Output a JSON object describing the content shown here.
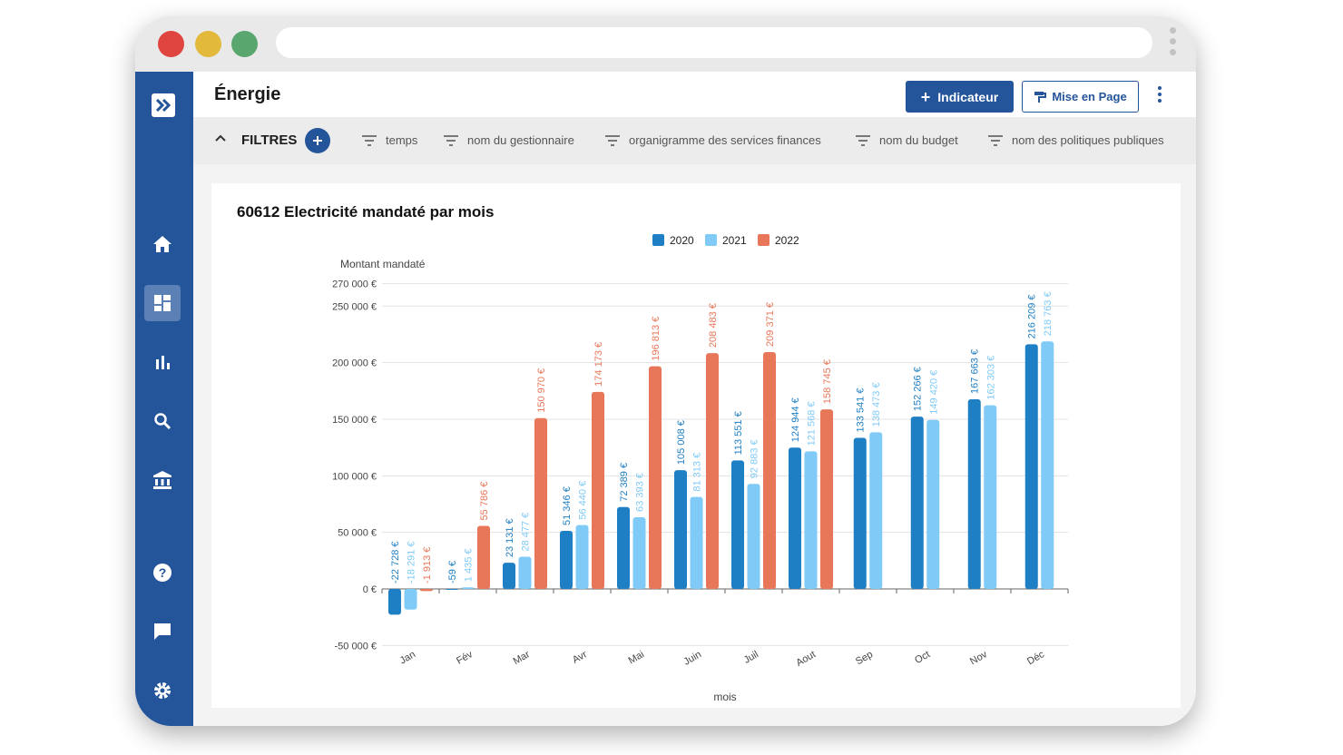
{
  "browser": {
    "dots": [
      {
        "name": "close-dot",
        "color": "#e0443e"
      },
      {
        "name": "minimize-dot",
        "color": "#e2b93b"
      },
      {
        "name": "maximize-dot",
        "color": "#5aa66f"
      }
    ]
  },
  "sidebar": {
    "items": [
      {
        "name": "logo-icon",
        "icon": "double-chevron-right"
      },
      {
        "name": "home-icon",
        "icon": "home"
      },
      {
        "name": "dashboard-icon",
        "icon": "dashboard",
        "active": true
      },
      {
        "name": "bar-chart-icon",
        "icon": "bar-chart"
      },
      {
        "name": "search-icon",
        "icon": "search"
      },
      {
        "name": "institution-icon",
        "icon": "bank"
      },
      {
        "name": "help-icon",
        "icon": "help"
      },
      {
        "name": "chat-icon",
        "icon": "chat"
      },
      {
        "name": "settings-icon",
        "icon": "gear"
      }
    ]
  },
  "header": {
    "title": "Énergie",
    "indicator_button": "Indicateur",
    "layout_button": "Mise en Page"
  },
  "filters": {
    "label": "FILTRES",
    "items": [
      "temps",
      "nom du gestionnaire",
      "organigramme des services finances",
      "nom du budget",
      "nom des politiques publiques"
    ]
  },
  "card": {
    "title": "60612 Electricité mandaté par mois"
  },
  "colors": {
    "brand": "#24549a",
    "series_2020": "#1f7fc4",
    "series_2021": "#7fcaf7",
    "series_2022": "#e8775a"
  },
  "chart_data": {
    "type": "bar",
    "xlabel": "mois",
    "ylabel": "Montant mandaté",
    "ylim": [
      -50000,
      270000
    ],
    "yticks": [
      {
        "value": 270000,
        "label": "270 000 €"
      },
      {
        "value": 250000,
        "label": "250 000 €"
      },
      {
        "value": 200000,
        "label": "200 000 €"
      },
      {
        "value": 150000,
        "label": "150 000 €"
      },
      {
        "value": 100000,
        "label": "100 000 €"
      },
      {
        "value": 50000,
        "label": "50 000 €"
      },
      {
        "value": 0,
        "label": "0 €"
      },
      {
        "value": -50000,
        "label": "-50 000 €"
      }
    ],
    "legend_position": "top-center",
    "grid": true,
    "categories": [
      "Jan",
      "Fév",
      "Mar",
      "Avr",
      "Mai",
      "Juin",
      "Juil",
      "Aout",
      "Sep",
      "Oct",
      "Nov",
      "Déc"
    ],
    "series": [
      {
        "name": "2020",
        "values": [
          -22728,
          -59,
          23131,
          51346,
          72389,
          105008,
          113551,
          124944,
          133541,
          152266,
          167663,
          216209
        ],
        "labels": [
          "-22 728 €",
          "-59 €",
          "23 131 €",
          "51 346 €",
          "72 389 €",
          "105 008 €",
          "113 551 €",
          "124 944 €",
          "133 541 €",
          "152 266 €",
          "167 663 €",
          "216 209 €"
        ]
      },
      {
        "name": "2021",
        "values": [
          -18291,
          1435,
          28477,
          56440,
          63393,
          81313,
          92883,
          121568,
          138473,
          149420,
          162303,
          218763
        ],
        "labels": [
          "-18 291 €",
          "1 435 €",
          "28 477 €",
          "56 440 €",
          "63 393 €",
          "81 313 €",
          "92 883 €",
          "121 568 €",
          "138 473 €",
          "149 420 €",
          "162 303 €",
          "218 763 €"
        ]
      },
      {
        "name": "2022",
        "values": [
          -1913,
          55786,
          150970,
          174173,
          196813,
          208483,
          209371,
          158745,
          null,
          null,
          null,
          null
        ],
        "labels": [
          "-1 913 €",
          "55 786 €",
          "150 970 €",
          "174 173 €",
          "196 813 €",
          "208 483 €",
          "209 371 €",
          "158 745 €",
          null,
          null,
          null,
          null
        ]
      }
    ]
  }
}
